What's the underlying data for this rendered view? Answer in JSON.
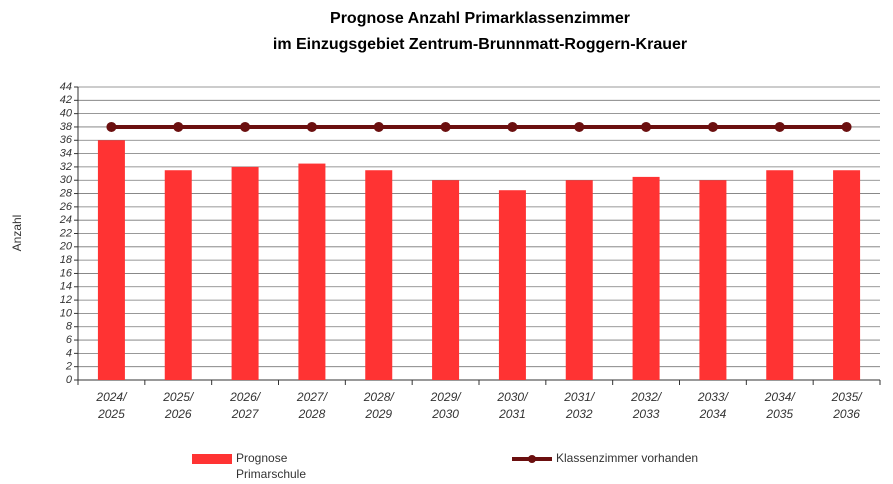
{
  "chart_data": {
    "type": "bar_line",
    "title": "Prognose Anzahl Primarklassenzimmer",
    "subtitle": "im Einzugsgebiet Zentrum-Brunnmatt-Roggern-Krauer",
    "y_label": "Anzahl",
    "categories": [
      "2024/2025",
      "2025/2026",
      "2026/2027",
      "2027/2028",
      "2028/2029",
      "2029/2030",
      "2030/2031",
      "2031/2032",
      "2032/2033",
      "2033/2034",
      "2034/2035",
      "2035/2036"
    ],
    "series": [
      {
        "name": "Prognose Primarschule",
        "type": "bar",
        "color": "#ff3333",
        "values": [
          36,
          31.5,
          32,
          32.5,
          31.5,
          30,
          28.5,
          30,
          30.5,
          30,
          31.5,
          31.5
        ]
      },
      {
        "name": "Klassenzimmer vorhanden",
        "type": "line",
        "color": "#6b0f0f",
        "values": [
          38,
          38,
          38,
          38,
          38,
          38,
          38,
          38,
          38,
          38,
          38,
          38
        ]
      }
    ],
    "ylim": [
      0,
      44
    ],
    "yticks": [
      0,
      2,
      4,
      6,
      8,
      10,
      12,
      14,
      16,
      18,
      20,
      22,
      24,
      26,
      28,
      30,
      32,
      34,
      36,
      38,
      40,
      42,
      44
    ],
    "grid": true
  }
}
